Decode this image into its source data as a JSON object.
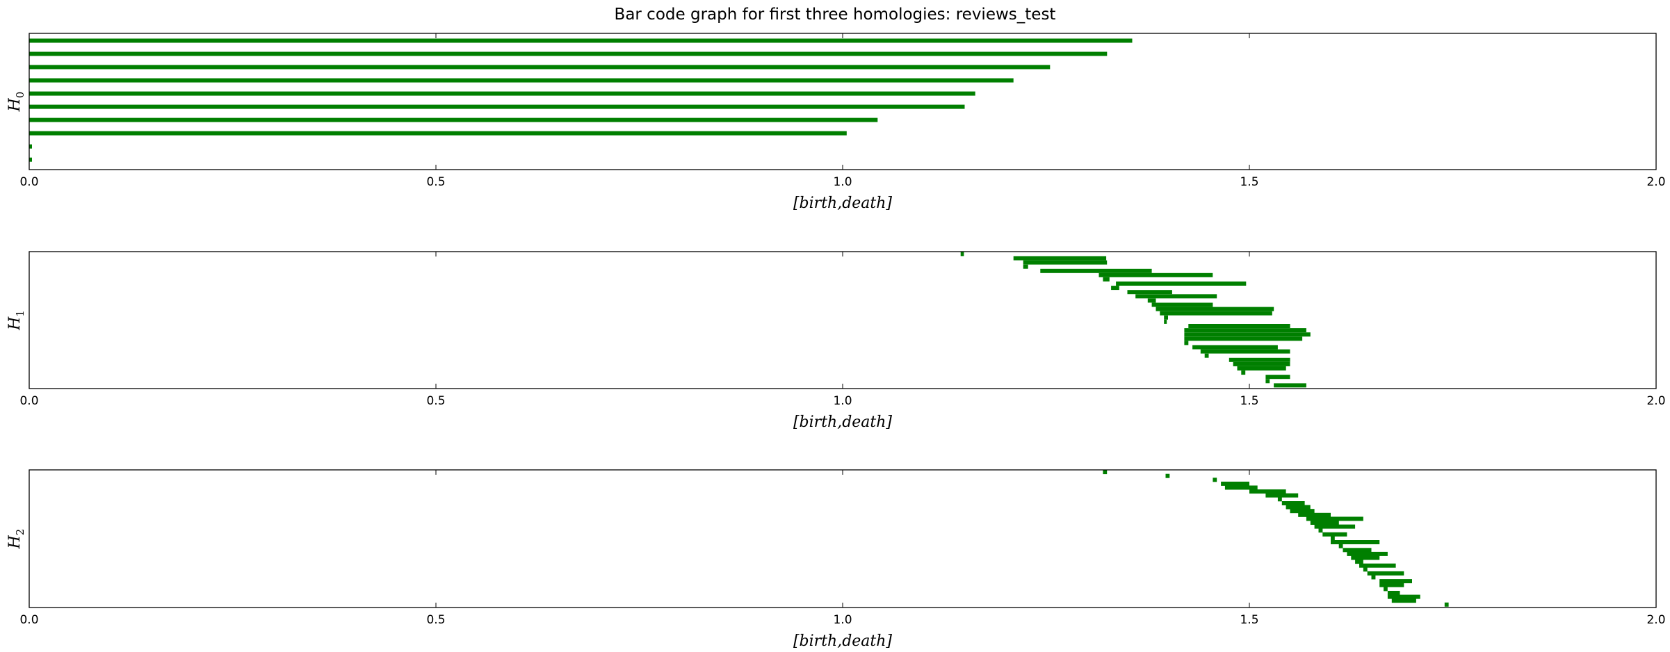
{
  "title": "Bar code graph for first three homologies: reviews_test",
  "colors": {
    "bar": "#007f00",
    "frame": "#000000",
    "background": "#ffffff"
  },
  "chart_data": [
    {
      "type": "bar",
      "orientation": "horizontal-barcode",
      "ylabel": "H",
      "ylabel_sub": "0",
      "xlabel": "[birth,death]",
      "xlim": [
        0,
        2
      ],
      "xticks": [
        "0.0",
        "0.5",
        "1.0",
        "1.5",
        "2.0"
      ],
      "grid": false,
      "intervals": [
        [
          0,
          1.356
        ],
        [
          0,
          1.325
        ],
        [
          0,
          1.255
        ],
        [
          0,
          1.21
        ],
        [
          0,
          1.163
        ],
        [
          0,
          1.15
        ],
        [
          0,
          1.043
        ],
        [
          0,
          1.005
        ],
        [
          0,
          0.003
        ],
        [
          0,
          0.003
        ]
      ]
    },
    {
      "type": "bar",
      "orientation": "horizontal-barcode",
      "ylabel": "H",
      "ylabel_sub": "1",
      "xlabel": "[birth,death]",
      "xlim": [
        0,
        2
      ],
      "xticks": [
        "0.0",
        "0.5",
        "1.0",
        "1.5",
        "2.0"
      ],
      "grid": false,
      "intervals": [
        [
          1.145,
          1.149
        ],
        [
          1.21,
          1.324
        ],
        [
          1.222,
          1.325
        ],
        [
          1.222,
          1.228
        ],
        [
          1.243,
          1.38
        ],
        [
          1.315,
          1.455
        ],
        [
          1.32,
          1.328
        ],
        [
          1.336,
          1.496
        ],
        [
          1.33,
          1.34
        ],
        [
          1.35,
          1.405
        ],
        [
          1.36,
          1.46
        ],
        [
          1.375,
          1.385
        ],
        [
          1.38,
          1.455
        ],
        [
          1.385,
          1.53
        ],
        [
          1.39,
          1.528
        ],
        [
          1.395,
          1.4
        ],
        [
          1.395,
          1.398
        ],
        [
          1.425,
          1.55
        ],
        [
          1.42,
          1.57
        ],
        [
          1.42,
          1.575
        ],
        [
          1.42,
          1.565
        ],
        [
          1.42,
          1.425
        ],
        [
          1.43,
          1.535
        ],
        [
          1.44,
          1.55
        ],
        [
          1.445,
          1.45
        ],
        [
          1.475,
          1.55
        ],
        [
          1.48,
          1.55
        ],
        [
          1.485,
          1.545
        ],
        [
          1.49,
          1.495
        ],
        [
          1.52,
          1.55
        ],
        [
          1.52,
          1.525
        ],
        [
          1.53,
          1.57
        ]
      ]
    },
    {
      "type": "bar",
      "orientation": "horizontal-barcode",
      "ylabel": "H",
      "ylabel_sub": "2",
      "xlabel": "[birth,death]",
      "xlim": [
        0,
        2
      ],
      "xticks": [
        "0.0",
        "0.5",
        "1.0",
        "1.5",
        "2.0"
      ],
      "grid": false,
      "intervals": [
        [
          1.32,
          1.325
        ],
        [
          1.397,
          1.402
        ],
        [
          1.455,
          1.46
        ],
        [
          1.465,
          1.5
        ],
        [
          1.47,
          1.51
        ],
        [
          1.5,
          1.545
        ],
        [
          1.52,
          1.56
        ],
        [
          1.535,
          1.54
        ],
        [
          1.54,
          1.568
        ],
        [
          1.545,
          1.575
        ],
        [
          1.55,
          1.58
        ],
        [
          1.56,
          1.6
        ],
        [
          1.57,
          1.64
        ],
        [
          1.575,
          1.61
        ],
        [
          1.58,
          1.63
        ],
        [
          1.585,
          1.59
        ],
        [
          1.59,
          1.62
        ],
        [
          1.6,
          1.605
        ],
        [
          1.6,
          1.66
        ],
        [
          1.61,
          1.615
        ],
        [
          1.615,
          1.65
        ],
        [
          1.62,
          1.67
        ],
        [
          1.625,
          1.66
        ],
        [
          1.63,
          1.64
        ],
        [
          1.635,
          1.68
        ],
        [
          1.64,
          1.645
        ],
        [
          1.645,
          1.69
        ],
        [
          1.65,
          1.655
        ],
        [
          1.66,
          1.7
        ],
        [
          1.66,
          1.69
        ],
        [
          1.665,
          1.67
        ],
        [
          1.67,
          1.685
        ],
        [
          1.67,
          1.71
        ],
        [
          1.675,
          1.705
        ],
        [
          1.74,
          1.745
        ]
      ]
    }
  ]
}
